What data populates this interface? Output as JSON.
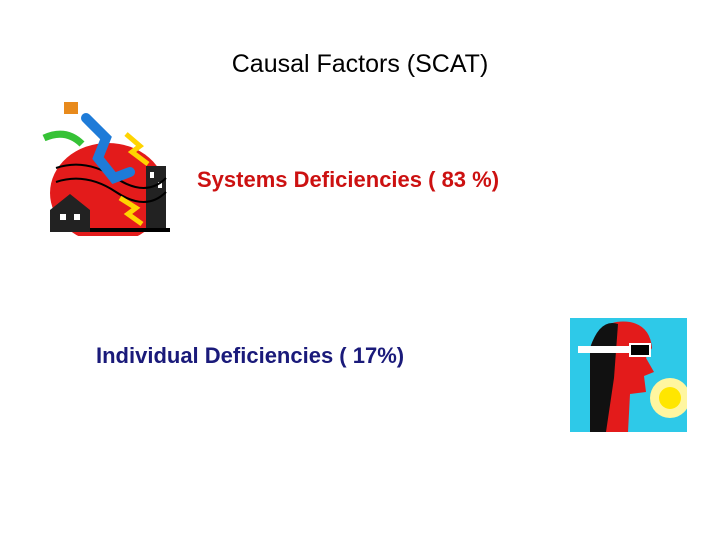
{
  "title": "Causal Factors (SCAT)",
  "items": [
    "Systems Deficiencies ( 83 %)",
    "Individual Deficiencies ( 17%)"
  ]
}
